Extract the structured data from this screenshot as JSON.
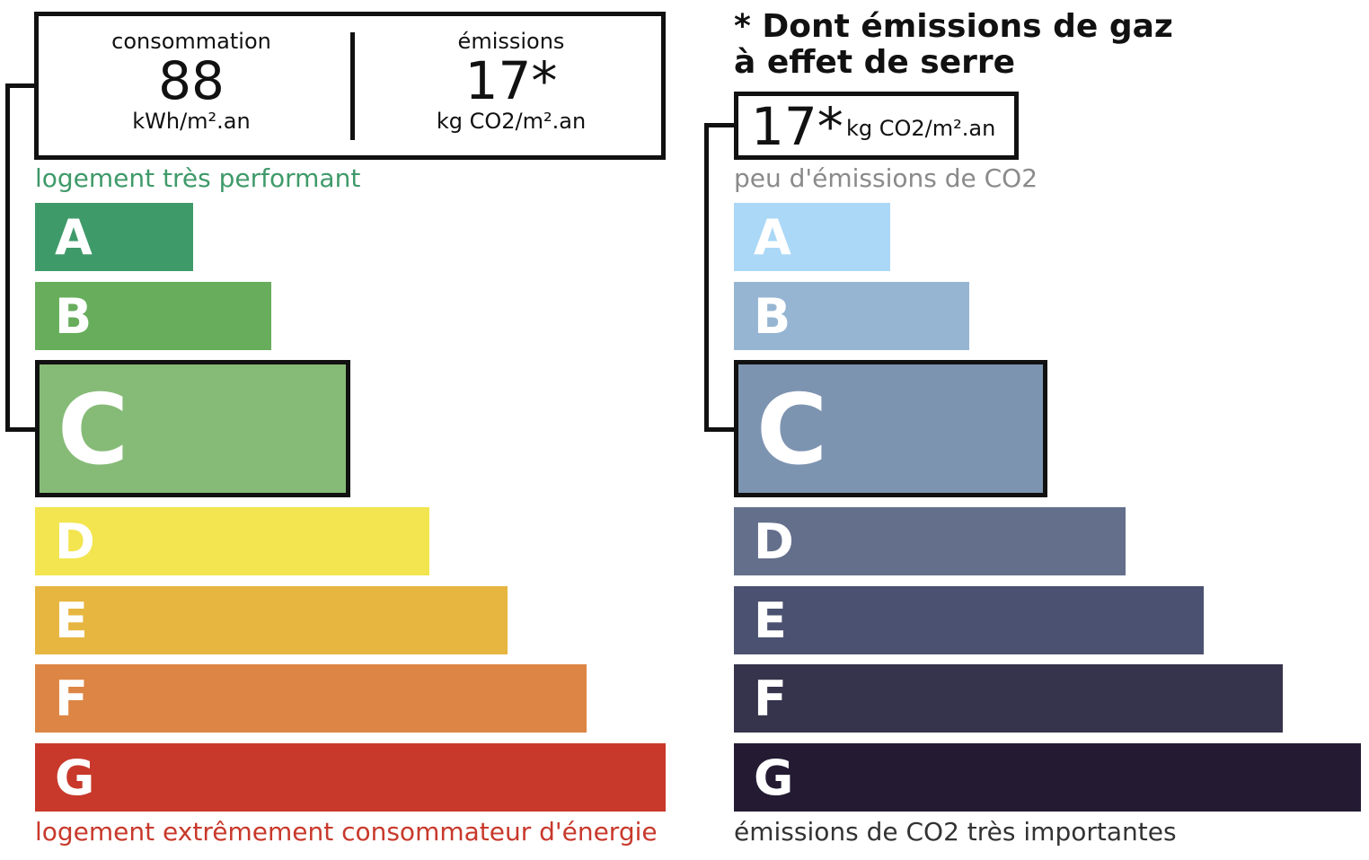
{
  "energy": {
    "summary": {
      "consumption_label": "consommation",
      "consumption_value": "88",
      "consumption_unit": "kWh/m².an",
      "emissions_label": "émissions",
      "emissions_value": "17*",
      "emissions_unit": "kg CO2/m².an"
    },
    "top_label": "logement très performant",
    "bottom_label": "logement extrêmement consommateur d'énergie",
    "top_label_color": "#3f9a6a",
    "bottom_label_color": "#c8392b",
    "current_class": "C",
    "classes": [
      {
        "letter": "A",
        "color": "#3f9a6a"
      },
      {
        "letter": "B",
        "color": "#67ad5b"
      },
      {
        "letter": "C",
        "color": "#86bb77"
      },
      {
        "letter": "D",
        "color": "#f2e54f"
      },
      {
        "letter": "E",
        "color": "#e7b640"
      },
      {
        "letter": "F",
        "color": "#dd8544"
      },
      {
        "letter": "G",
        "color": "#c8392b"
      }
    ]
  },
  "ges": {
    "note_line1": "* Dont émissions de gaz",
    "note_line2": "à effet de serre",
    "value": "17*",
    "unit": "kg CO2/m².an",
    "top_label": "peu d'émissions de CO2",
    "bottom_label": "émissions de CO2 très importantes",
    "top_label_color": "#8a8a8a",
    "bottom_label_color": "#333333",
    "current_class": "C",
    "classes": [
      {
        "letter": "A",
        "color": "#abd8f6"
      },
      {
        "letter": "B",
        "color": "#96b5d2"
      },
      {
        "letter": "C",
        "color": "#7d94b1"
      },
      {
        "letter": "D",
        "color": "#646f8c"
      },
      {
        "letter": "E",
        "color": "#4b5170"
      },
      {
        "letter": "F",
        "color": "#36334c"
      },
      {
        "letter": "G",
        "color": "#241b33"
      }
    ]
  }
}
